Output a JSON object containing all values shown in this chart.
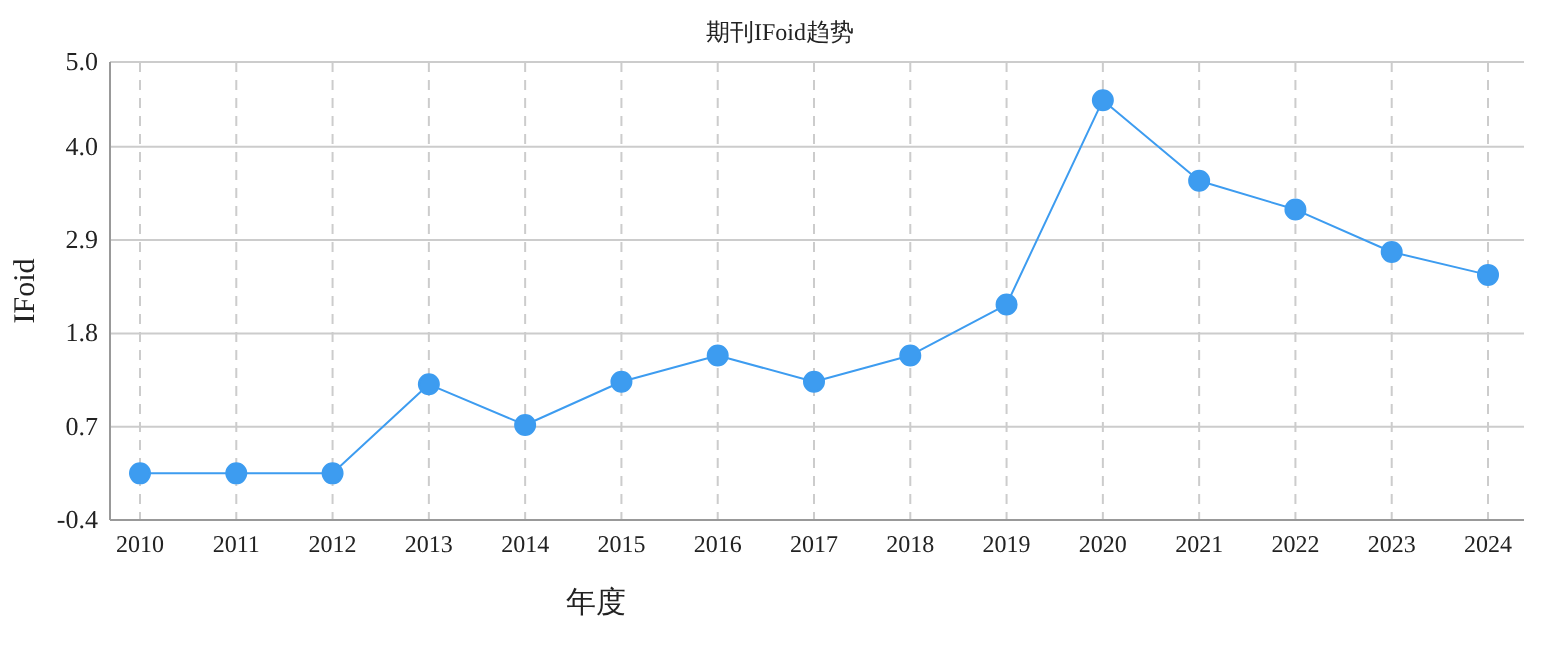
{
  "chart_data": {
    "type": "line",
    "title": "期刊IFoid趋势",
    "xlabel": "年度",
    "ylabel": "IFoid",
    "categories": [
      "2010",
      "2011",
      "2012",
      "2013",
      "2014",
      "2015",
      "2016",
      "2017",
      "2018",
      "2019",
      "2020",
      "2021",
      "2022",
      "2023",
      "2024"
    ],
    "series": [
      {
        "color": "#3d9cf0",
        "values": [
          0.15,
          0.15,
          0.15,
          1.2,
          0.72,
          1.23,
          1.54,
          1.23,
          1.54,
          2.14,
          4.55,
          3.6,
          3.26,
          2.76,
          2.49
        ]
      }
    ],
    "ylim": [
      -0.4,
      5.0
    ],
    "yticks": [
      -0.4,
      0.7,
      1.8,
      2.9,
      {
        "value": 4,
        "label": "4.0"
      },
      {
        "value": 5,
        "label": "5.0"
      }
    ],
    "grid": true,
    "marker": "circle",
    "line_style": "solid"
  }
}
